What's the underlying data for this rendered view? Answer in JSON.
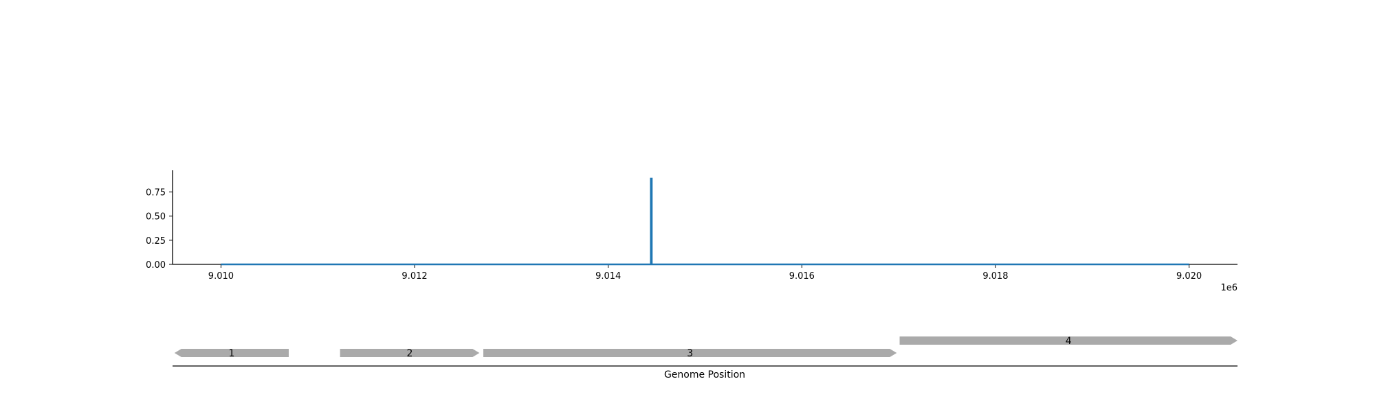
{
  "chart_data": [
    {
      "type": "line",
      "title": "",
      "xlabel": "",
      "ylabel": "",
      "x_offset_label": "1e6",
      "xlim": [
        9009500,
        9020500
      ],
      "ylim": [
        0,
        0.975
      ],
      "x_ticks": [
        9010000,
        9012000,
        9014000,
        9016000,
        9018000,
        9020000
      ],
      "x_tick_labels": [
        "9.010",
        "9.012",
        "9.014",
        "9.016",
        "9.018",
        "9.020"
      ],
      "y_ticks": [
        0,
        0.25,
        0.5,
        0.75
      ],
      "y_tick_labels": [
        "0.00",
        "0.25",
        "0.50",
        "0.75"
      ],
      "grid": false,
      "series": [
        {
          "color": "#1f77b4",
          "points": [
            [
              9010000,
              0
            ],
            [
              9014440,
              0
            ],
            [
              9014440,
              0.89
            ],
            [
              9014450,
              0.89
            ],
            [
              9014450,
              0
            ],
            [
              9020000,
              0
            ]
          ]
        }
      ]
    },
    {
      "type": "gene-track",
      "xlabel": "Genome Position",
      "xlim": [
        9009500,
        9020500
      ],
      "feature_color": "#aaaaaa",
      "features": [
        {
          "label": "1",
          "start": 9009520,
          "end": 9010700,
          "strand": "-",
          "row": 0
        },
        {
          "label": "2",
          "start": 9011230,
          "end": 9012670,
          "strand": "+",
          "row": 0
        },
        {
          "label": "3",
          "start": 9012710,
          "end": 9016980,
          "strand": "+",
          "row": 0
        },
        {
          "label": "4",
          "start": 9017010,
          "end": 9020500,
          "strand": "+",
          "row": 1
        }
      ]
    }
  ]
}
